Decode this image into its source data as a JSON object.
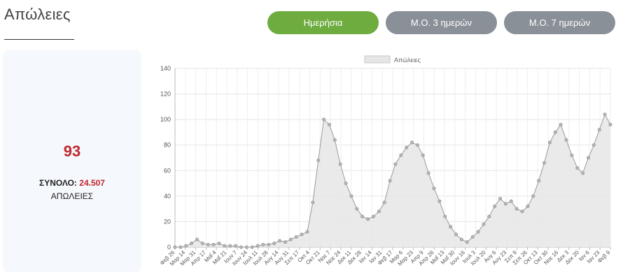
{
  "page_title": "Απώλειες",
  "buttons": {
    "daily": "Ημερήσια",
    "avg3": "Μ.Ο. 3 ημερών",
    "avg7": "Μ.Ο. 7 ημερών"
  },
  "summary": {
    "latest_value": "93",
    "total_prefix": "ΣΥΝΟΛΟ:",
    "total_value": "24.507",
    "label": "ΑΠΩΛΕΙΕΣ"
  },
  "colors": {
    "accent_green": "#6fac3f",
    "button_gray": "#8a9097",
    "highlight_red": "#c0282d",
    "series_fill": "#e6e6e6",
    "series_stroke": "#9a9a9a"
  },
  "chart_data": {
    "type": "area",
    "legend": "Απώλειες",
    "legend_position": "top-center",
    "grid": true,
    "ylim": [
      0,
      140
    ],
    "yticks": [
      0,
      20,
      40,
      60,
      80,
      100,
      120,
      140
    ],
    "xlabels": [
      "Φεβ 26",
      "Μαρ 14",
      "Μαρ 31",
      "Απρ 17",
      "Μαΐ 4",
      "Μαΐ 21",
      "Ιουν 7",
      "Ιουν 24",
      "Ιουλ 11",
      "Ιουλ 28",
      "Αυγ 14",
      "Αυγ 31",
      "Σεπ 17",
      "Οκτ 4",
      "Οκτ 21",
      "Νοε 7",
      "Νοε 24",
      "Δεκ 11",
      "Δεκ 28",
      "Ιαν 14",
      "Ιαν 31",
      "Φεβ 17",
      "Μαρ 6",
      "Μαρ 23",
      "Απρ 9",
      "Απρ 26",
      "Μαΐ 13",
      "Μαΐ 30",
      "Ιουν 16",
      "Ιουλ 3",
      "Ιουλ 20",
      "Αυγ 6",
      "Αυγ 23",
      "Σεπ 9",
      "Σεπ 26",
      "Οκτ 13",
      "Οκτ 30",
      "Νοε 16",
      "Δεκ 3",
      "Δεκ 20",
      "Ιαν 6",
      "Ιαν 23",
      "Φεβ 9"
    ],
    "values": [
      0,
      0,
      1,
      3,
      6,
      3,
      2,
      2,
      3,
      1,
      1,
      1,
      0,
      0,
      0,
      1,
      2,
      2,
      3,
      5,
      4,
      6,
      8,
      10,
      12,
      35,
      68,
      100,
      96,
      84,
      65,
      50,
      40,
      30,
      24,
      22,
      24,
      28,
      35,
      52,
      65,
      72,
      78,
      82,
      80,
      72,
      58,
      46,
      36,
      24,
      16,
      10,
      6,
      4,
      8,
      12,
      18,
      24,
      32,
      38,
      34,
      36,
      30,
      28,
      32,
      40,
      52,
      66,
      82,
      90,
      96,
      84,
      72,
      62,
      58,
      70,
      80,
      92,
      104,
      96
    ]
  }
}
